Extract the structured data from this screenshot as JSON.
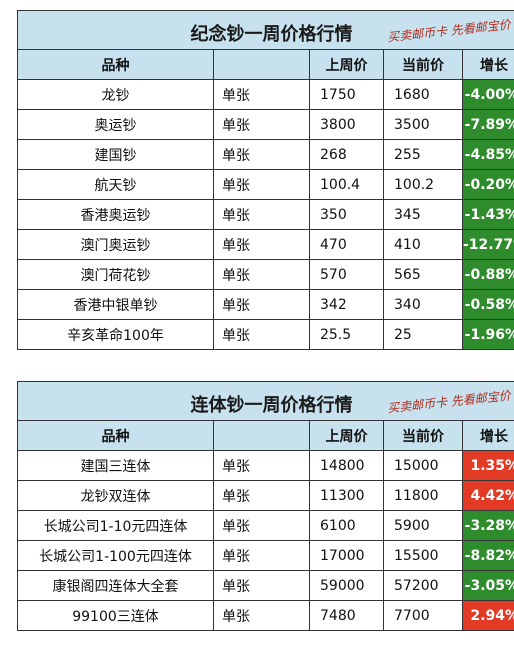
{
  "table1": {
    "title": "纪念钞一周价格行情",
    "watermark": "买卖邮币卡 先看邮宝价",
    "headers": [
      "品种",
      "",
      "上周价",
      "当前价",
      "增长"
    ],
    "rows": [
      {
        "name": "龙钞",
        "unit": "单张",
        "last": "1750",
        "current": "1680",
        "change": "-4.00%"
      },
      {
        "name": "奥运钞",
        "unit": "单张",
        "last": "3800",
        "current": "3500",
        "change": "-7.89%"
      },
      {
        "name": "建国钞",
        "unit": "单张",
        "last": "268",
        "current": "255",
        "change": "-4.85%"
      },
      {
        "name": "航天钞",
        "unit": "单张",
        "last": "100.4",
        "current": "100.2",
        "change": "-0.20%"
      },
      {
        "name": "香港奥运钞",
        "unit": "单张",
        "last": "350",
        "current": "345",
        "change": "-1.43%"
      },
      {
        "name": "澳门奥运钞",
        "unit": "单张",
        "last": "470",
        "current": "410",
        "change": "-12.77%"
      },
      {
        "name": "澳门荷花钞",
        "unit": "单张",
        "last": "570",
        "current": "565",
        "change": "-0.88%"
      },
      {
        "name": "香港中银单钞",
        "unit": "单张",
        "last": "342",
        "current": "340",
        "change": "-0.58%"
      },
      {
        "name": "辛亥革命100年",
        "unit": "单张",
        "last": "25.5",
        "current": "25",
        "change": "-1.96%"
      }
    ]
  },
  "table2": {
    "title": "连体钞一周价格行情",
    "watermark": "买卖邮币卡 先看邮宝价",
    "headers": [
      "品种",
      "",
      "上周价",
      "当前价",
      "增长"
    ],
    "rows": [
      {
        "name": "建国三连体",
        "unit": "单张",
        "last": "14800",
        "current": "15000",
        "change": "1.35%"
      },
      {
        "name": "龙钞双连体",
        "unit": "单张",
        "last": "11300",
        "current": "11800",
        "change": "4.42%"
      },
      {
        "name": "长城公司1-10元四连体",
        "unit": "单张",
        "last": "6100",
        "current": "5900",
        "change": "-3.28%"
      },
      {
        "name": "长城公司1-100元四连体",
        "unit": "单张",
        "last": "17000",
        "current": "15500",
        "change": "-8.82%"
      },
      {
        "name": "康银阁四连体大全套",
        "unit": "单张",
        "last": "59000",
        "current": "57200",
        "change": "-3.05%"
      },
      {
        "name": "99100三连体",
        "unit": "单张",
        "last": "7480",
        "current": "7700",
        "change": "2.94%"
      }
    ]
  },
  "colors": {
    "header_bg": "#c7e2ee",
    "down": "#2f8c2c",
    "up": "#e33a26",
    "watermark": "#b02a1c"
  }
}
